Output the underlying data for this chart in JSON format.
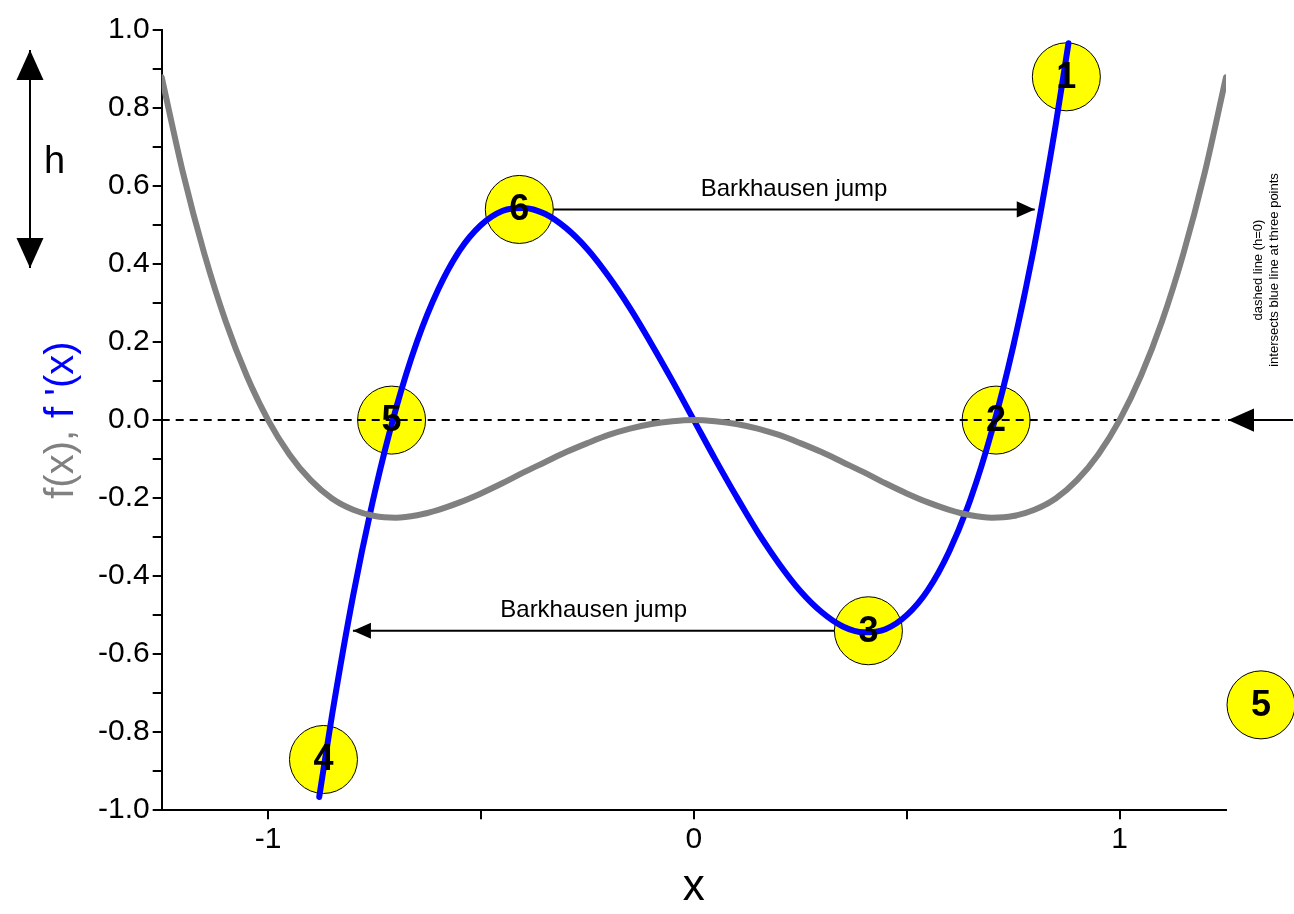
{
  "chart_data": {
    "type": "line",
    "xlabel": "x",
    "xlim": [
      -1.25,
      1.25
    ],
    "ylim": [
      -1,
      1
    ],
    "xticks": [
      -1,
      {
        "value": -0.5,
        "label": null
      },
      0,
      {
        "value": 0.5,
        "label": null
      },
      1
    ],
    "yticks": [
      {
        "value": -1,
        "label": "-1.0"
      },
      {
        "value": -0.9,
        "label": null
      },
      {
        "value": -0.8,
        "label": "-0.8"
      },
      {
        "value": -0.7,
        "label": null
      },
      {
        "value": -0.6,
        "label": "-0.6"
      },
      {
        "value": -0.5,
        "label": null
      },
      {
        "value": -0.4,
        "label": "-0.4"
      },
      {
        "value": -0.3,
        "label": null
      },
      {
        "value": -0.2,
        "label": "-0.2"
      },
      {
        "value": -0.1,
        "label": null
      },
      {
        "value": 0,
        "label": "0.0"
      },
      {
        "value": 0.1,
        "label": null
      },
      {
        "value": 0.2,
        "label": "0.2"
      },
      {
        "value": 0.3,
        "label": null
      },
      {
        "value": 0.4,
        "label": "0.4"
      },
      {
        "value": 0.5,
        "label": null
      },
      {
        "value": 0.6,
        "label": "0.6"
      },
      {
        "value": 0.7,
        "label": null
      },
      {
        "value": 0.8,
        "label": "0.8"
      },
      {
        "value": 0.9,
        "label": null
      },
      {
        "value": 1,
        "label": "1.0"
      }
    ],
    "series": [
      {
        "name": "f(x),",
        "color": "#808080",
        "x": [
          -1.25,
          -1.2,
          -1.15,
          -1.1,
          -1.05,
          -1,
          -0.95,
          -0.9,
          -0.85,
          -0.8,
          -0.75,
          -0.7,
          -0.65,
          -0.6,
          -0.55,
          -0.5,
          -0.45,
          -0.4,
          -0.35,
          -0.3,
          -0.25,
          -0.2,
          -0.15,
          -0.1,
          -0.05,
          0,
          0.05,
          0.1,
          0.15,
          0.2,
          0.25,
          0.3,
          0.35,
          0.4,
          0.45,
          0.5,
          0.55,
          0.6,
          0.65,
          0.7,
          0.75,
          0.8,
          0.85,
          0.9,
          0.95,
          1,
          1.05,
          1.1,
          1.15,
          1.2,
          1.25
        ],
        "values": [
          0.879,
          0.634,
          0.427,
          0.254,
          0.113,
          0,
          -0.088,
          -0.154,
          -0.201,
          -0.23,
          -0.246,
          -0.25,
          -0.244,
          -0.23,
          -0.211,
          -0.188,
          -0.162,
          -0.134,
          -0.108,
          -0.082,
          -0.059,
          -0.038,
          -0.022,
          -0.01,
          -0.003,
          0,
          -0.003,
          -0.01,
          -0.022,
          -0.038,
          -0.059,
          -0.082,
          -0.108,
          -0.134,
          -0.162,
          -0.188,
          -0.211,
          -0.23,
          -0.244,
          -0.25,
          -0.246,
          -0.23,
          -0.201,
          -0.154,
          -0.088,
          0,
          0.113,
          0.254,
          0.427,
          0.634,
          0.879
        ]
      },
      {
        "name": "f '(x)",
        "color": "#0000ff",
        "x": [
          -0.88,
          -0.85,
          -0.8,
          -0.75,
          -0.7,
          -0.65,
          -0.6,
          -0.55,
          -0.5,
          -0.45,
          -0.4,
          -0.35,
          -0.3,
          -0.25,
          -0.2,
          -0.15,
          -0.1,
          -0.05,
          0,
          0.05,
          0.1,
          0.15,
          0.2,
          0.25,
          0.3,
          0.35,
          0.4,
          0.45,
          0.5,
          0.55,
          0.6,
          0.65,
          0.7,
          0.75,
          0.8,
          0.85,
          0.88
        ],
        "values": [
          -0.966,
          -0.757,
          -0.448,
          -0.188,
          0.028,
          0.202,
          0.336,
          0.435,
          0.5,
          0.536,
          0.544,
          0.529,
          0.492,
          0.438,
          0.368,
          0.287,
          0.196,
          0.1,
          0,
          -0.1,
          -0.196,
          -0.287,
          -0.368,
          -0.438,
          -0.492,
          -0.529,
          -0.544,
          -0.536,
          -0.5,
          -0.435,
          -0.336,
          -0.202,
          -0.028,
          0.188,
          0.448,
          0.757,
          0.966
        ]
      }
    ],
    "ref_lines": [
      {
        "axis": "y",
        "value": 0,
        "color": "#000000",
        "line_style": "dashed"
      }
    ],
    "annotations": [
      {
        "text": "1",
        "x": 0.875,
        "y": 0.88
      },
      {
        "text": "2",
        "x": 0.71,
        "y": 0
      },
      {
        "text": "3",
        "x": 0.41,
        "y": -0.54
      },
      {
        "text": "4",
        "x": -0.87,
        "y": -0.87
      },
      {
        "text": "5",
        "x": -0.71,
        "y": 0
      },
      {
        "text": "6",
        "x": -0.41,
        "y": 0.54
      },
      "Barkhausen jump",
      "Barkhausen jump",
      "h",
      "dashed line (h=0)",
      "intersects blue line at three points",
      "5"
    ]
  }
}
